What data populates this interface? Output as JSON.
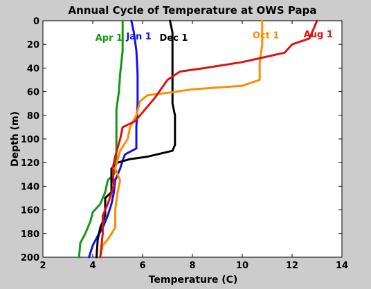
{
  "chart_data": {
    "type": "line",
    "title": "Annual Cycle of Temperature at OWS Papa",
    "xlabel": "Temperature (C)",
    "ylabel": "Depth (m)",
    "xlim": [
      2,
      14
    ],
    "ylim": [
      0,
      200
    ],
    "y_reversed": true,
    "grid": false,
    "xticks": [
      "2",
      "4",
      "6",
      "8",
      "10",
      "12",
      "14"
    ],
    "yticks": [
      "0",
      "20",
      "40",
      "60",
      "80",
      "100",
      "120",
      "140",
      "160",
      "180",
      "200"
    ],
    "series": [
      {
        "name": "Apr 1",
        "color": "#119911",
        "points": [
          [
            5.2,
            0
          ],
          [
            5.2,
            25
          ],
          [
            5.1,
            45
          ],
          [
            5.05,
            60
          ],
          [
            4.95,
            75
          ],
          [
            4.95,
            100
          ],
          [
            4.95,
            115
          ],
          [
            4.9,
            125
          ],
          [
            4.85,
            130
          ],
          [
            4.6,
            135
          ],
          [
            4.5,
            145
          ],
          [
            4.3,
            155
          ],
          [
            4.0,
            162
          ],
          [
            3.9,
            170
          ],
          [
            3.7,
            180
          ],
          [
            3.5,
            188
          ],
          [
            3.45,
            200
          ]
        ]
      },
      {
        "name": "Jan 1",
        "color": "#1010ee",
        "points": [
          [
            5.55,
            0
          ],
          [
            5.65,
            10
          ],
          [
            5.75,
            25
          ],
          [
            5.8,
            45
          ],
          [
            5.8,
            70
          ],
          [
            5.75,
            90
          ],
          [
            5.75,
            108
          ],
          [
            5.3,
            113
          ],
          [
            5.2,
            118
          ],
          [
            5.1,
            125
          ],
          [
            4.9,
            135
          ],
          [
            4.85,
            145
          ],
          [
            4.75,
            155
          ],
          [
            4.6,
            165
          ],
          [
            4.4,
            175
          ],
          [
            4.2,
            182
          ],
          [
            4.0,
            190
          ],
          [
            3.85,
            200
          ]
        ]
      },
      {
        "name": "Dec 1",
        "color": "#000000",
        "points": [
          [
            7.1,
            0
          ],
          [
            7.2,
            10
          ],
          [
            7.2,
            40
          ],
          [
            7.2,
            70
          ],
          [
            7.3,
            80
          ],
          [
            7.3,
            105
          ],
          [
            7.2,
            110
          ],
          [
            6.2,
            115
          ],
          [
            5.5,
            117
          ],
          [
            5.0,
            120
          ],
          [
            4.75,
            125
          ],
          [
            4.75,
            145
          ],
          [
            4.5,
            150
          ],
          [
            4.5,
            165
          ],
          [
            4.3,
            175
          ],
          [
            4.2,
            185
          ],
          [
            4.15,
            200
          ]
        ]
      },
      {
        "name": "Oct 1",
        "color": "#ff8c00",
        "points": [
          [
            10.8,
            0
          ],
          [
            10.8,
            20
          ],
          [
            10.7,
            35
          ],
          [
            10.7,
            50
          ],
          [
            10.0,
            55
          ],
          [
            8.0,
            58
          ],
          [
            7.0,
            61
          ],
          [
            6.2,
            63
          ],
          [
            5.9,
            68
          ],
          [
            5.75,
            80
          ],
          [
            5.5,
            90
          ],
          [
            5.4,
            100
          ],
          [
            5.1,
            110
          ],
          [
            4.9,
            125
          ],
          [
            5.1,
            135
          ],
          [
            5.0,
            145
          ],
          [
            4.9,
            160
          ],
          [
            4.9,
            175
          ],
          [
            4.6,
            185
          ],
          [
            4.4,
            190
          ],
          [
            4.3,
            200
          ]
        ]
      },
      {
        "name": "Aug 1",
        "color": "#dd1111",
        "points": [
          [
            13.0,
            0
          ],
          [
            12.7,
            15
          ],
          [
            12.0,
            20
          ],
          [
            11.7,
            27
          ],
          [
            10.0,
            35
          ],
          [
            8.5,
            40
          ],
          [
            7.5,
            43
          ],
          [
            7.0,
            50
          ],
          [
            6.5,
            65
          ],
          [
            6.1,
            75
          ],
          [
            5.7,
            85
          ],
          [
            5.2,
            90
          ],
          [
            5.1,
            100
          ],
          [
            4.9,
            115
          ],
          [
            4.8,
            125
          ],
          [
            4.85,
            140
          ],
          [
            4.6,
            155
          ],
          [
            4.4,
            165
          ],
          [
            4.4,
            180
          ],
          [
            4.3,
            200
          ]
        ]
      }
    ],
    "annotations": [
      {
        "text": "Apr 1",
        "x": 4.65,
        "y": 14,
        "color": "#119911"
      },
      {
        "text": "Jan 1",
        "x": 5.85,
        "y": 13,
        "color": "#1010ee"
      },
      {
        "text": "Dec 1",
        "x": 7.25,
        "y": 14,
        "color": "#000000"
      },
      {
        "text": "Oct 1",
        "x": 10.95,
        "y": 12,
        "color": "#ff8c00"
      },
      {
        "text": "Aug 1",
        "x": 13.05,
        "y": 11,
        "color": "#dd1111"
      }
    ]
  }
}
